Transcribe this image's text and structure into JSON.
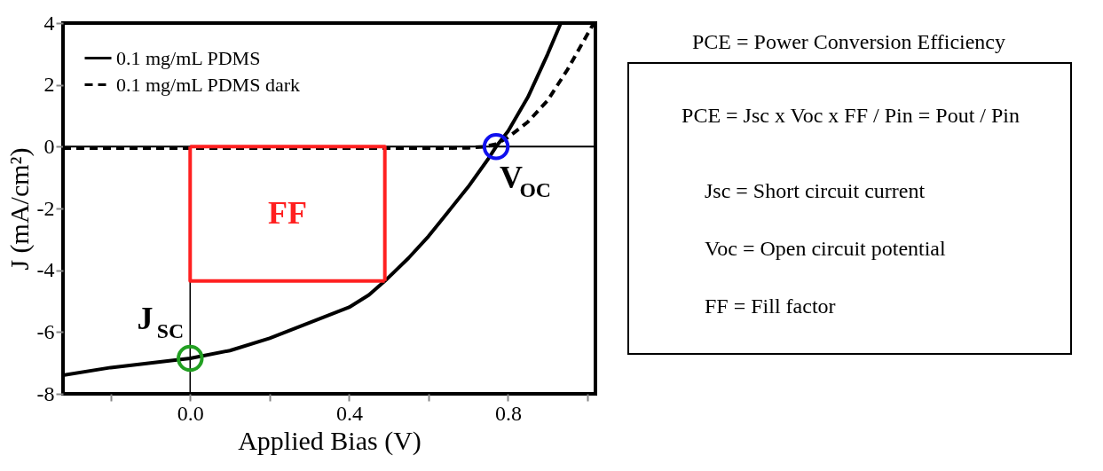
{
  "chart_data": [
    {
      "type": "line",
      "xlabel": "Applied Bias (V)",
      "ylabel": "J (mA/cm²)",
      "xlim": [
        -0.32,
        1.02
      ],
      "ylim": [
        -8,
        4
      ],
      "xticks": [
        {
          "value": -0.2,
          "label": null
        },
        {
          "value": 0,
          "label": "0.0"
        },
        {
          "value": 0.2,
          "label": null
        },
        0.4,
        {
          "value": 0.6,
          "label": null
        },
        0.8,
        {
          "value": 1.0,
          "label": null
        }
      ],
      "yticks": [
        -8,
        -6,
        -4,
        -2,
        0,
        2,
        4
      ],
      "grid": false,
      "legend": "top left",
      "series": [
        {
          "name": "0.1 mg/mL PDMS",
          "type": "line",
          "color": "#000000",
          "line_style": "solid",
          "x": [
            -0.32,
            -0.2,
            -0.1,
            0,
            0.1,
            0.2,
            0.3,
            0.4,
            0.45,
            0.49,
            0.55,
            0.6,
            0.65,
            0.7,
            0.75,
            0.77,
            0.8,
            0.85,
            0.9,
            0.933
          ],
          "values": [
            -7.4,
            -7.15,
            -7.0,
            -6.85,
            -6.6,
            -6.2,
            -5.7,
            -5.2,
            -4.8,
            -4.35,
            -3.6,
            -2.9,
            -2.1,
            -1.3,
            -0.4,
            0,
            0.5,
            1.6,
            3.0,
            4
          ]
        },
        {
          "name": "0.1 mg/mL PDMS dark",
          "type": "line",
          "color": "#000000",
          "line_style": "dashed",
          "x": [
            -0.32,
            0,
            0.3,
            0.6,
            0.7,
            0.74,
            0.77,
            0.8,
            0.85,
            0.9,
            0.95,
            0.985,
            1.016
          ],
          "values": [
            -0.05,
            -0.05,
            -0.05,
            -0.05,
            -0.04,
            0,
            0.08,
            0.3,
            0.8,
            1.5,
            2.5,
            3.3,
            4
          ]
        },
        {
          "type": "line",
          "color": "#ff2020",
          "line_style": "solid",
          "x": [
            0,
            0.49,
            0.49
          ],
          "values": [
            0,
            0,
            -4.35
          ]
        },
        {
          "type": "line",
          "color": "#ff2020",
          "line_style": "solid",
          "x": [
            0.49,
            0,
            0
          ],
          "values": [
            -4.35,
            -4.35,
            0
          ]
        },
        {
          "type": "scatter",
          "marker": "circle",
          "color": "#22a022",
          "x": [
            0
          ],
          "values": [
            -6.85
          ]
        },
        {
          "type": "scatter",
          "marker": "circle",
          "color": "#1010ee",
          "x": [
            0.77
          ],
          "values": [
            0
          ]
        }
      ],
      "ref_lines": [
        {
          "axis": "y",
          "value": 0,
          "color": "#000000"
        },
        {
          "axis": "x",
          "value": 0,
          "color": "#000000"
        }
      ],
      "annotations": [
        {
          "text": "J$_{SC}$",
          "x": 0,
          "y": -6.85
        },
        "FF",
        {
          "text": "V$_{OC}$",
          "x": 0.77,
          "y": 0
        }
      ]
    },
    {
      "type": "other",
      "title": "PCE = Power Conversion Efficiency",
      "annotations": [
        "PCE = Jsc x Voc x FF / Pin = Pout / Pin",
        "Jsc = Short circuit current",
        "Voc = Open circuit potential",
        "FF = Fill factor"
      ]
    }
  ]
}
